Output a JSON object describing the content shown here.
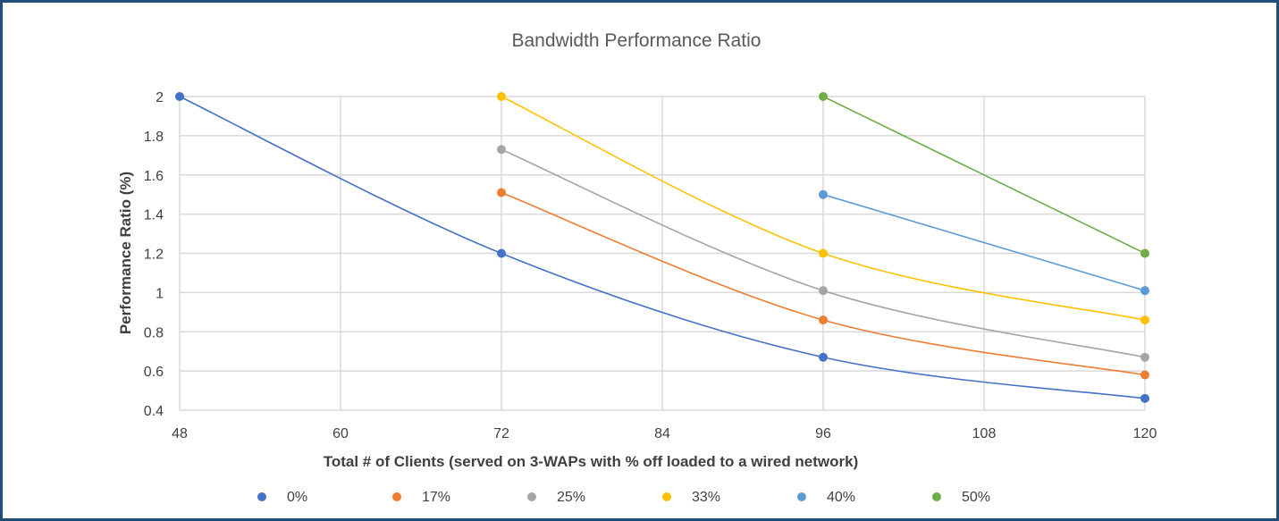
{
  "chart_data": {
    "type": "scatter",
    "title": "Bandwidth Performance Ratio",
    "xlabel": "Total # of Clients (served on 3-WAPs with % off loaded to a wired network)",
    "ylabel": "Performance Ratio (%)",
    "xlim": [
      48,
      120
    ],
    "ylim": [
      0.4,
      2
    ],
    "x_ticks": [
      48,
      60,
      72,
      84,
      96,
      108,
      120
    ],
    "y_ticks": [
      0.4,
      0.6,
      0.8,
      1,
      1.2,
      1.4,
      1.6,
      1.8,
      2
    ],
    "grid": "vertical and horizontal",
    "legend_position": "bottom",
    "series": [
      {
        "name": "0%",
        "color": "#4472c4",
        "points": [
          [
            48,
            2.0
          ],
          [
            72,
            1.2
          ],
          [
            96,
            0.67
          ],
          [
            120,
            0.46
          ]
        ]
      },
      {
        "name": "17%",
        "color": "#ed7d31",
        "points": [
          [
            72,
            1.51
          ],
          [
            96,
            0.86
          ],
          [
            120,
            0.58
          ]
        ]
      },
      {
        "name": "25%",
        "color": "#a5a5a5",
        "points": [
          [
            72,
            1.73
          ],
          [
            96,
            1.01
          ],
          [
            120,
            0.67
          ]
        ]
      },
      {
        "name": "33%",
        "color": "#ffc000",
        "points": [
          [
            72,
            2.0
          ],
          [
            96,
            1.2
          ],
          [
            120,
            0.86
          ]
        ]
      },
      {
        "name": "40%",
        "color": "#5b9bd5",
        "points": [
          [
            96,
            1.5
          ],
          [
            120,
            1.01
          ]
        ]
      },
      {
        "name": "50%",
        "color": "#70ad47",
        "points": [
          [
            96,
            2.0
          ],
          [
            120,
            1.2
          ]
        ]
      }
    ]
  }
}
